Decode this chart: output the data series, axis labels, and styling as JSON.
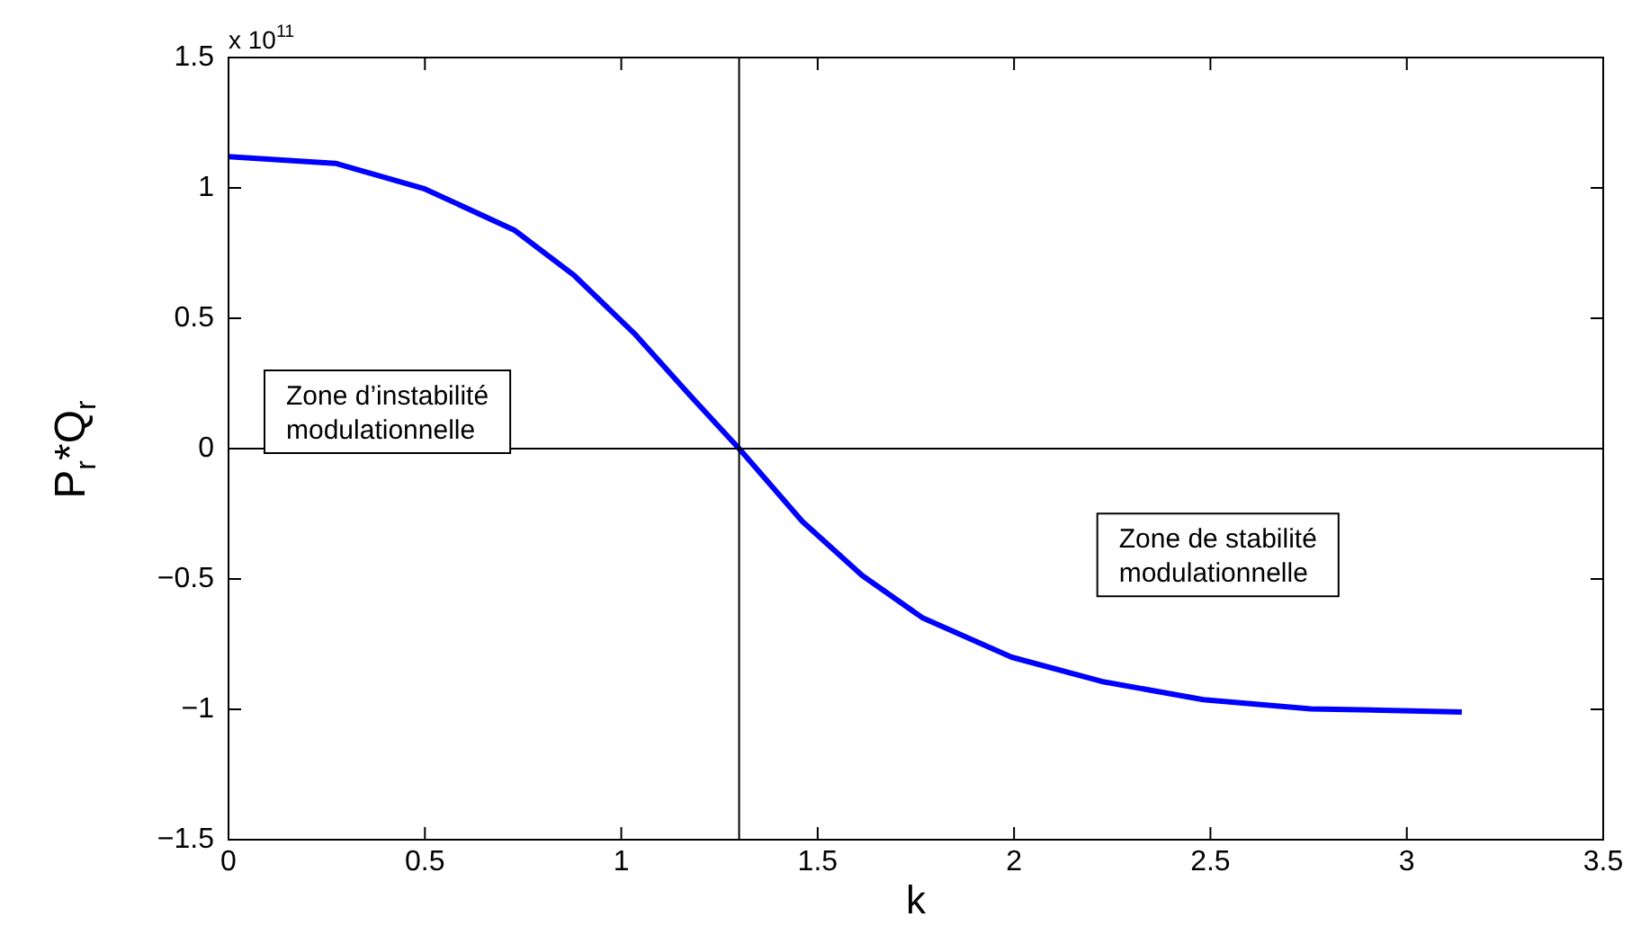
{
  "chart_data": {
    "type": "line",
    "xlabel": "k",
    "ylabel": "P$_{r}$*Q$_{r}$",
    "x": [
      0,
      0.272,
      0.5,
      0.729,
      0.881,
      1.033,
      1.186,
      1.3,
      1.461,
      1.613,
      1.766,
      1.994,
      2.223,
      2.482,
      2.756,
      3.14
    ],
    "series": [
      {
        "color": "#0000ff",
        "values": [
          1.12,
          1.094,
          0.996,
          0.837,
          0.663,
          0.442,
          0.186,
          0,
          -0.279,
          -0.486,
          -0.648,
          -0.8,
          -0.893,
          -0.963,
          -0.998,
          -1.01
        ]
      }
    ],
    "xlim": [
      0,
      3.5
    ],
    "xticks": [
      0,
      0.5,
      1,
      1.5,
      2,
      2.5,
      3,
      3.5
    ],
    "ylim": [
      -1.5,
      1.5
    ],
    "yticks": [
      -1.5,
      -1,
      -0.5,
      0,
      0.5,
      1,
      1.5
    ],
    "grid": false,
    "legend": false,
    "marker": "none",
    "line_style": "solid",
    "ref_lines": [
      {
        "axis": "x",
        "value": 1.3,
        "color": "#000000"
      },
      {
        "axis": "y",
        "value": 0,
        "color": "#000000"
      }
    ],
    "annotations": [
      "x 10$^{11}$",
      "Zone d’instabilité\nmodulationnelle",
      "Zone de stabilité\nmodulationnelle"
    ]
  }
}
